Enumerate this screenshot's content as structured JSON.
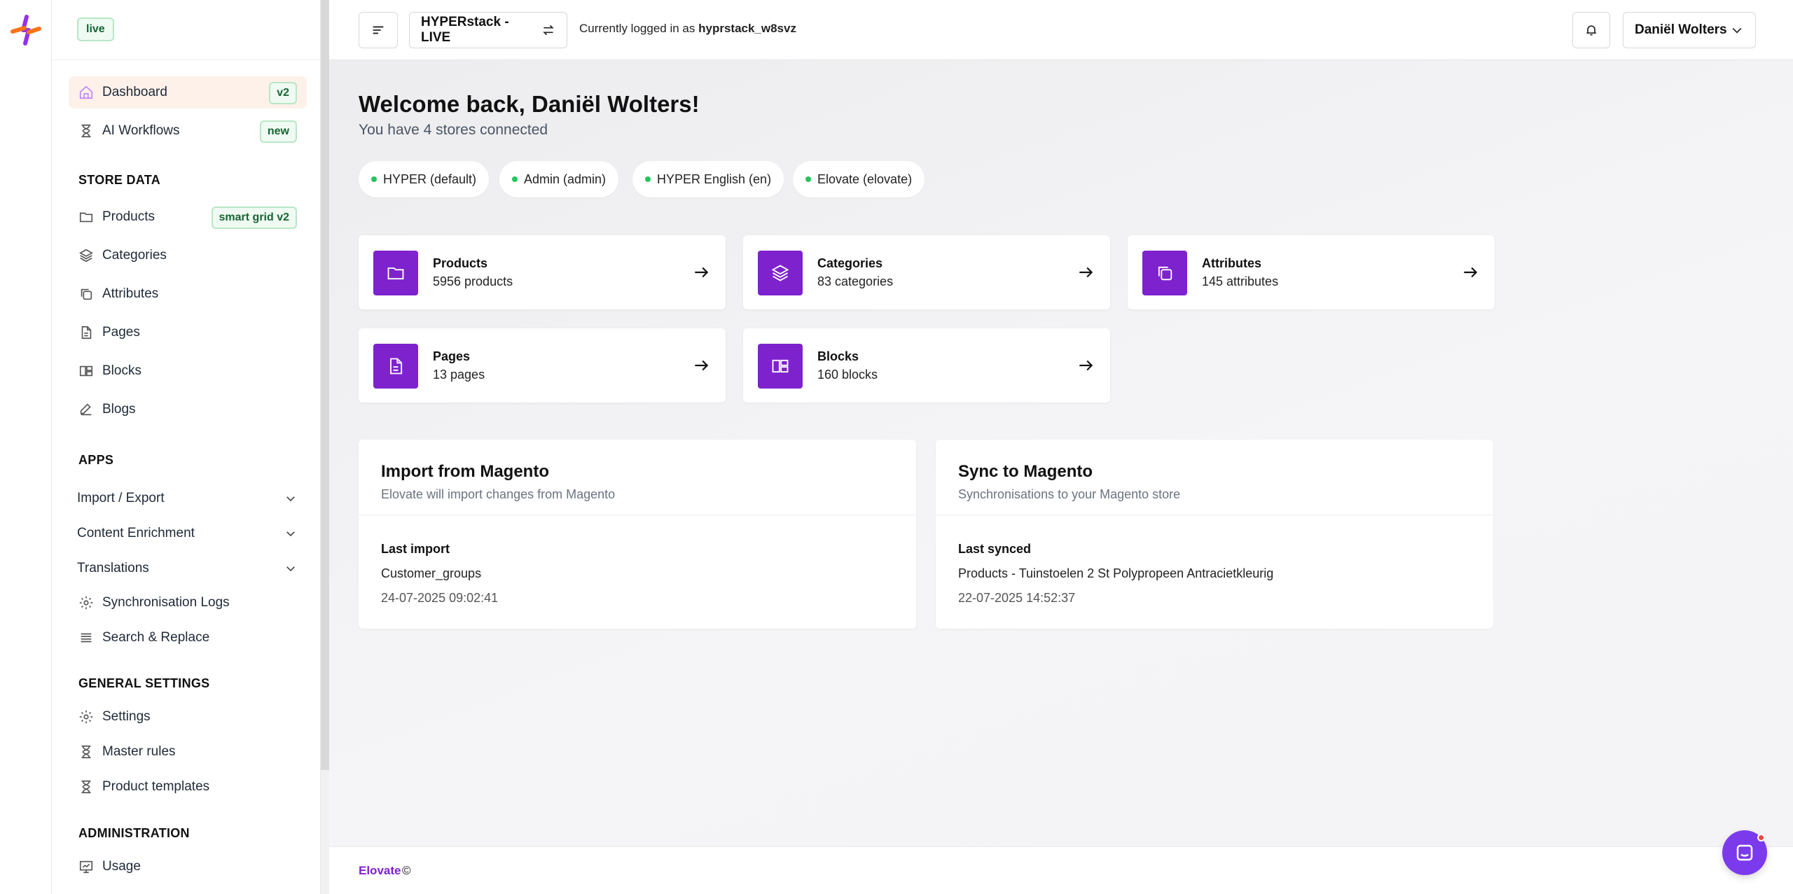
{
  "sidebar": {
    "env_badge": "live",
    "dashboard": {
      "label": "Dashboard",
      "badge": "v2",
      "icon": "home-icon"
    },
    "ai_workflows": {
      "label": "AI Workflows",
      "badge": "new",
      "icon": "hourglass-icon"
    },
    "store_data_title": "STORE DATA",
    "store_data": [
      {
        "label": "Products",
        "badge": "smart grid v2",
        "icon": "folder-icon"
      },
      {
        "label": "Categories",
        "icon": "layers-icon"
      },
      {
        "label": "Attributes",
        "icon": "copy-icon"
      },
      {
        "label": "Pages",
        "icon": "file-icon"
      },
      {
        "label": "Blocks",
        "icon": "blocks-icon"
      },
      {
        "label": "Blogs",
        "icon": "edit-icon"
      }
    ],
    "apps_title": "APPS",
    "apps": [
      {
        "label": "Import / Export"
      },
      {
        "label": "Content Enrichment"
      },
      {
        "label": "Translations"
      },
      {
        "label": "Synchronisation Logs",
        "icon": "gear-icon"
      },
      {
        "label": "Search & Replace",
        "icon": "list-icon"
      }
    ],
    "general_title": "GENERAL SETTINGS",
    "general": [
      {
        "label": "Settings",
        "icon": "gear-icon"
      },
      {
        "label": "Master rules",
        "icon": "hourglass-icon"
      },
      {
        "label": "Product templates",
        "icon": "hourglass-icon"
      }
    ],
    "admin_title": "ADMINISTRATION",
    "admin": [
      {
        "label": "Usage",
        "icon": "monitor-icon"
      }
    ]
  },
  "topbar": {
    "store_label": "HYPERstack - LIVE",
    "login_prefix": "Currently logged in as",
    "login_user": "hyprstack_w8svz",
    "user_name": "Daniël Wolters"
  },
  "main": {
    "welcome": "Welcome back, Daniël Wolters!",
    "subtitle": "You have 4 stores connected",
    "stores": [
      "HYPER (default)",
      "Admin (admin)",
      "HYPER English (en)",
      "Elovate (elovate)"
    ],
    "cards": [
      {
        "title": "Products",
        "count": "5956 products",
        "icon": "folder-icon"
      },
      {
        "title": "Categories",
        "count": "83 categories",
        "icon": "layers-icon"
      },
      {
        "title": "Attributes",
        "count": "145 attributes",
        "icon": "copy-icon"
      },
      {
        "title": "Pages",
        "count": "13 pages",
        "icon": "file-icon"
      },
      {
        "title": "Blocks",
        "count": "160 blocks",
        "icon": "blocks-icon"
      }
    ],
    "import_panel": {
      "title": "Import from Magento",
      "subtitle": "Elovate will import changes from Magento",
      "label": "Last import",
      "item": "Customer_groups",
      "time": "24-07-2025 09:02:41"
    },
    "sync_panel": {
      "title": "Sync to Magento",
      "subtitle": "Synchronisations to your Magento store",
      "label": "Last synced",
      "item": "Products - Tuinstoelen 2 St Polypropeen Antracietkleurig",
      "time": "22-07-2025 14:52:37"
    }
  },
  "footer": {
    "brand": "Elovate",
    "copyright": "©"
  },
  "colors": {
    "accent": "#7e22ce",
    "badge_green": "#166534",
    "status_dot": "#22c55e"
  }
}
